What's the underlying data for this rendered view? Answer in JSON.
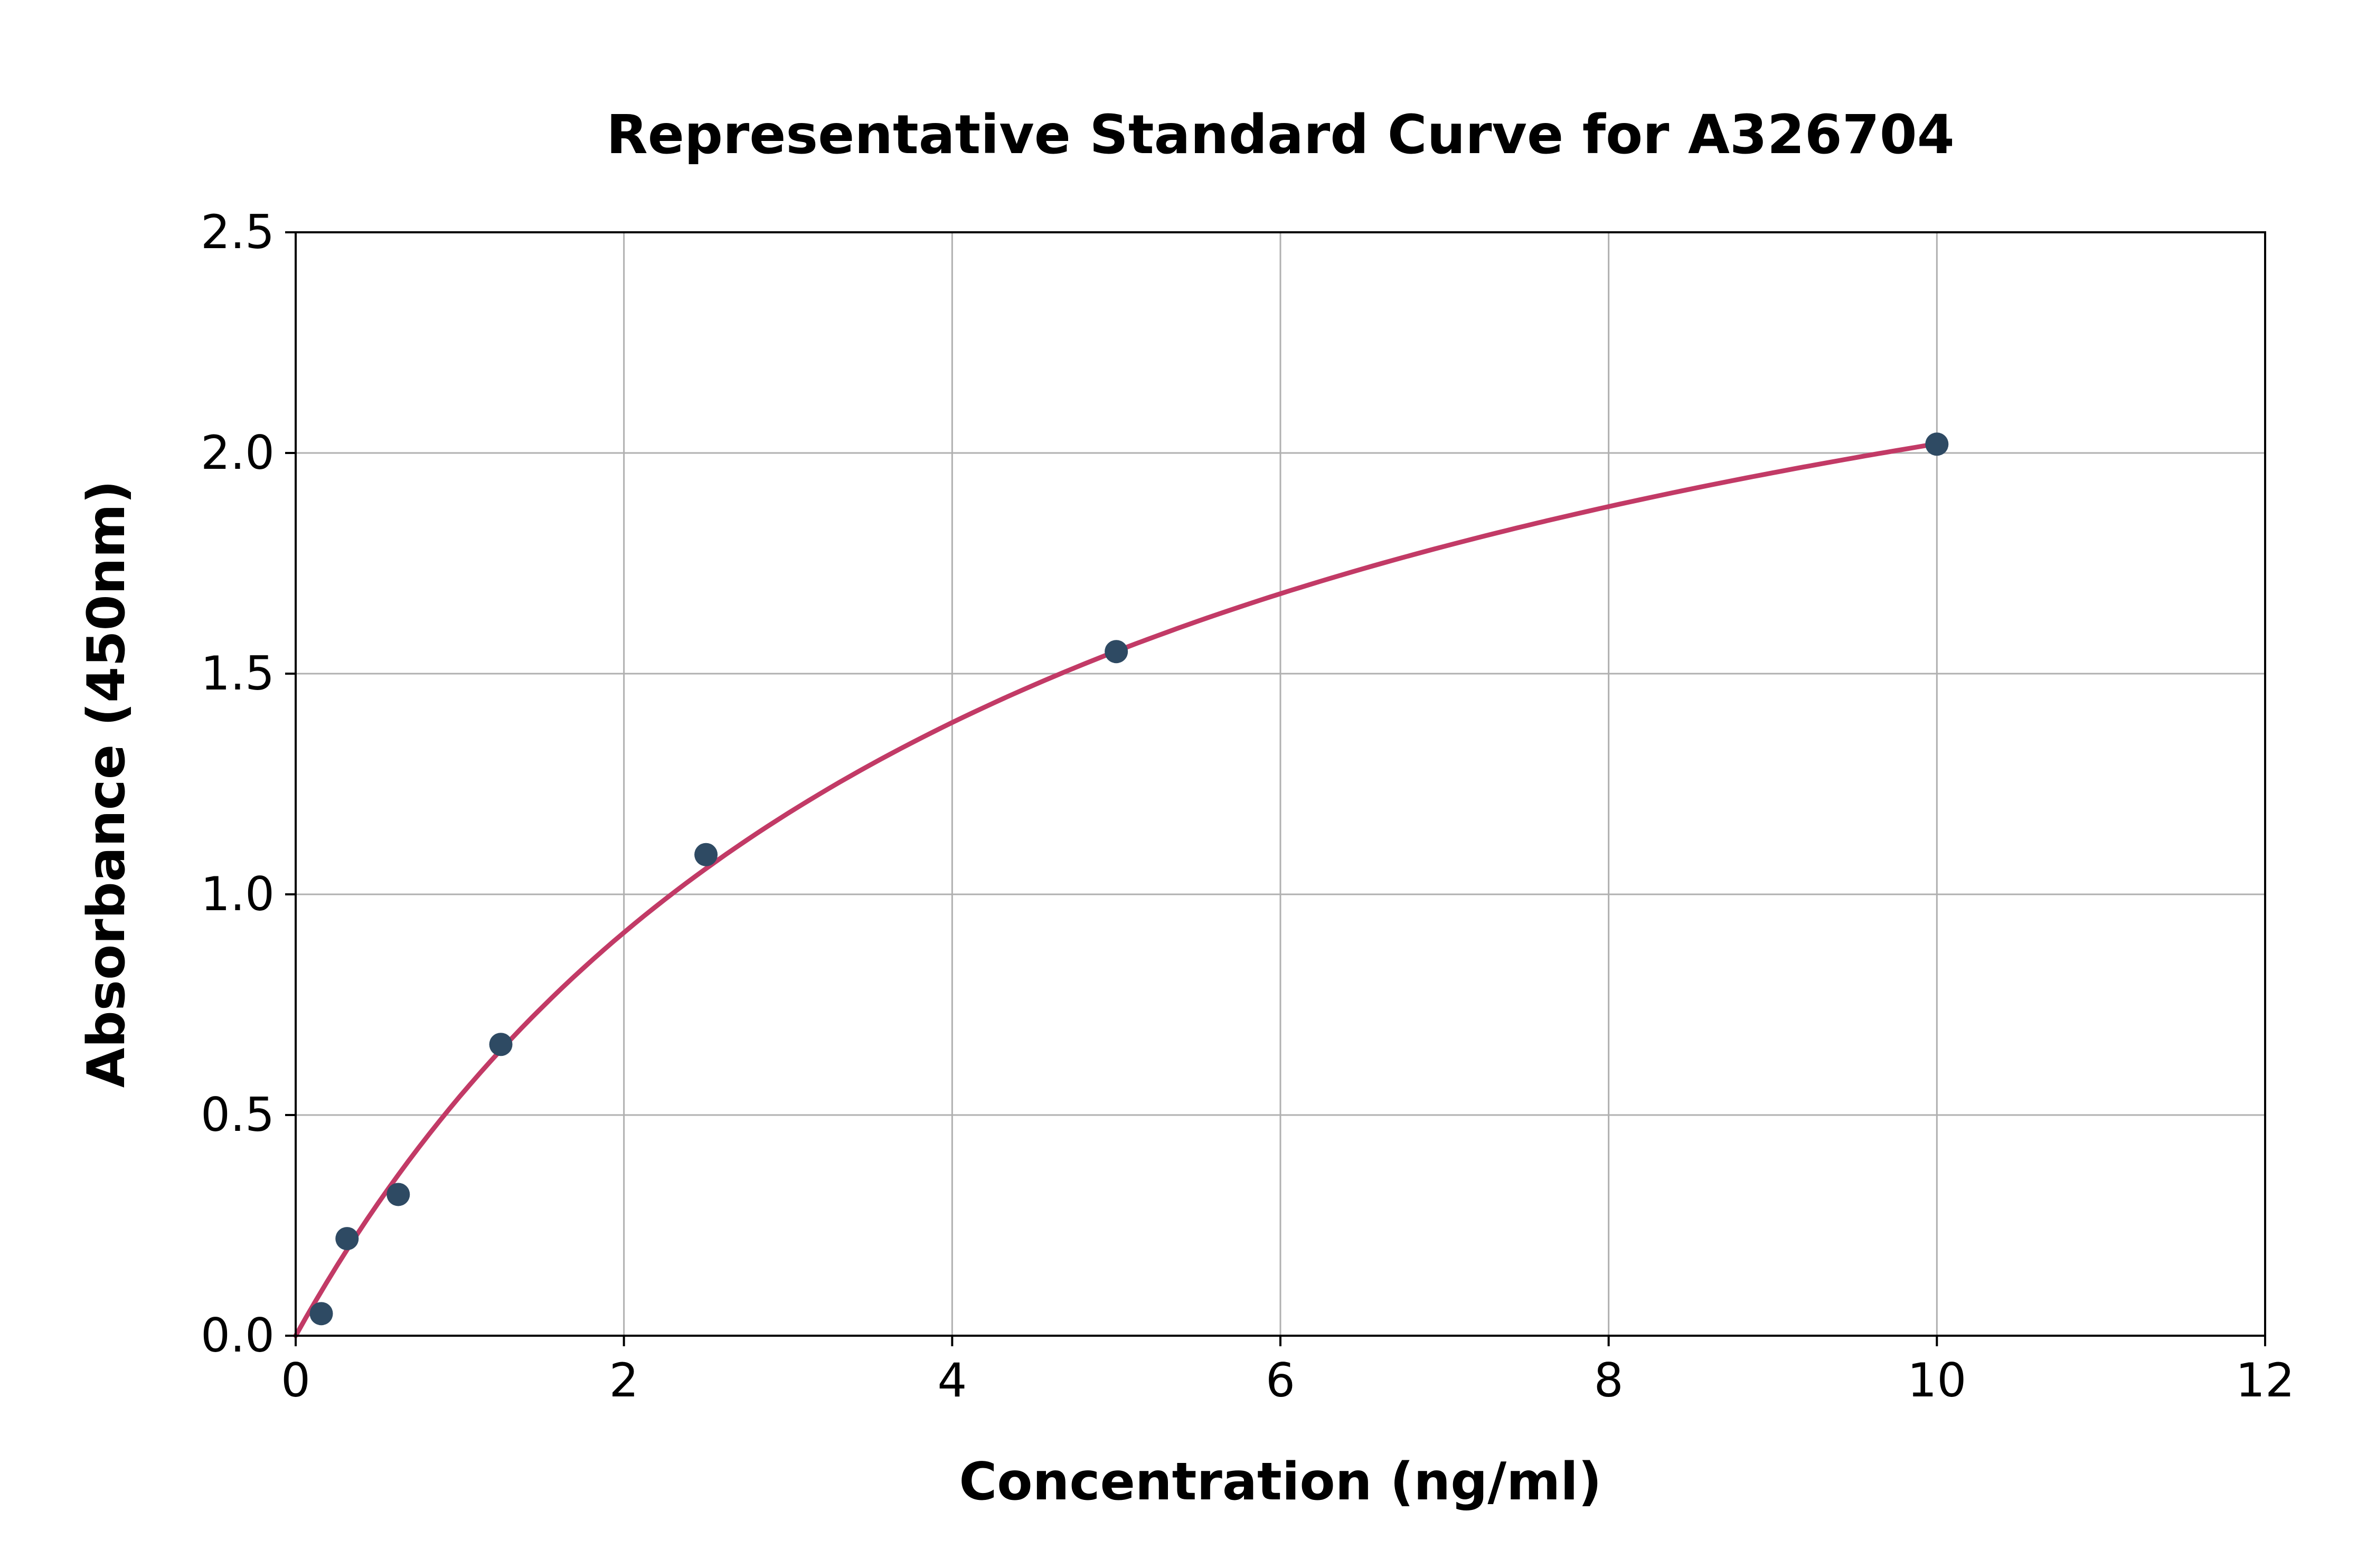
{
  "chart_data": {
    "type": "scatter",
    "title": "Representative Standard Curve for A326704",
    "xlabel": "Concentration (ng/ml)",
    "ylabel": "Absorbance (450nm)",
    "xlim": [
      0,
      12
    ],
    "ylim": [
      0,
      2.5
    ],
    "xticks": [
      0,
      2,
      4,
      6,
      8,
      10,
      12
    ],
    "xtick_labels": [
      "0",
      "2",
      "4",
      "6",
      "8",
      "10",
      "12"
    ],
    "yticks": [
      0.0,
      0.5,
      1.0,
      1.5,
      2.0,
      2.5
    ],
    "ytick_labels": [
      "0.0",
      "0.5",
      "1.0",
      "1.5",
      "2.0",
      "2.5"
    ],
    "grid": true,
    "legend": "none",
    "points": {
      "x": [
        0.156,
        0.313,
        0.625,
        1.25,
        2.5,
        5,
        10
      ],
      "y": [
        0.05,
        0.22,
        0.32,
        0.66,
        1.09,
        1.55,
        2.02
      ]
    },
    "fit_curve": {
      "model": "saturation y = a*x/(b+x)",
      "a": 2.9,
      "b": 4.35,
      "x_range": [
        0,
        10
      ]
    },
    "colors": {
      "point": "#2e4a63",
      "curve": "#c23a66",
      "grid": "#b0b0b0",
      "axis": "#000000",
      "background": "#ffffff"
    }
  }
}
